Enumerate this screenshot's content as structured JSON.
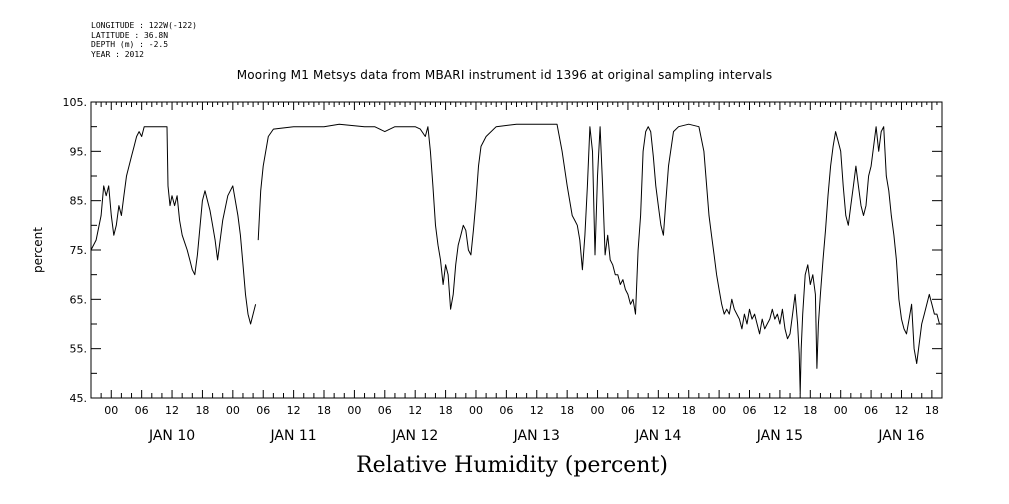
{
  "header": {
    "longitude": "LONGITUDE : 122W(-122)",
    "latitude": "LATITUDE : 36.8N",
    "depth": "DEPTH (m) : -2.5",
    "year": "YEAR : 2012"
  },
  "chart_data": {
    "type": "line",
    "title": "Mooring M1 Metsys data from MBARI instrument id 1396 at original sampling intervals",
    "xlabel": "Relative Humidity (percent)",
    "ylabel": "percent",
    "ylim": [
      45,
      105
    ],
    "yticks": [
      "45.",
      "55.",
      "65.",
      "75.",
      "85.",
      "95.",
      "105."
    ],
    "x_unit": "hours since JAN 10 00",
    "xlim": [
      -4,
      164
    ],
    "hour_ticks": [
      "00",
      "06",
      "12",
      "18",
      "00",
      "06",
      "12",
      "18",
      "00",
      "06",
      "12",
      "18",
      "00",
      "06",
      "12",
      "18",
      "00",
      "06",
      "12",
      "18",
      "00",
      "06",
      "12",
      "18",
      "00",
      "06",
      "12",
      "18"
    ],
    "day_labels": [
      "JAN 10",
      "JAN 11",
      "JAN 12",
      "JAN 13",
      "JAN 14",
      "JAN 15",
      "JAN 16"
    ],
    "grid": false,
    "series": [
      {
        "segments": [
          [
            [
              -4,
              75
            ],
            [
              -3,
              77
            ],
            [
              -2,
              82
            ],
            [
              -1.5,
              88
            ],
            [
              -1,
              86
            ],
            [
              -0.5,
              88
            ],
            [
              0,
              82
            ],
            [
              0.5,
              78
            ],
            [
              1,
              80
            ],
            [
              1.5,
              84
            ],
            [
              2,
              82
            ],
            [
              2.5,
              86
            ],
            [
              3,
              90
            ],
            [
              4,
              94
            ],
            [
              4.5,
              96
            ],
            [
              5,
              98
            ],
            [
              5.5,
              99
            ],
            [
              6,
              98
            ],
            [
              6.5,
              100
            ],
            [
              8,
              100
            ],
            [
              10,
              100
            ],
            [
              11,
              100
            ],
            [
              11.2,
              88
            ],
            [
              11.6,
              84
            ],
            [
              12,
              86
            ],
            [
              12.5,
              84
            ],
            [
              13,
              86
            ],
            [
              13.5,
              81
            ],
            [
              14,
              78
            ],
            [
              15,
              75
            ],
            [
              15.5,
              73
            ],
            [
              16,
              71
            ],
            [
              16.5,
              70
            ],
            [
              17,
              74
            ],
            [
              18,
              85
            ],
            [
              18.5,
              87
            ],
            [
              19,
              85
            ],
            [
              19.5,
              83
            ],
            [
              20,
              80
            ],
            [
              20.5,
              77
            ],
            [
              21,
              73
            ],
            [
              22,
              81
            ],
            [
              23,
              86
            ],
            [
              24,
              88
            ],
            [
              25,
              82
            ],
            [
              25.5,
              78
            ],
            [
              26,
              72
            ],
            [
              26.5,
              66
            ],
            [
              27,
              62
            ],
            [
              27.5,
              60
            ],
            [
              28,
              62
            ],
            [
              28.5,
              64
            ]
          ],
          [
            [
              29,
              77
            ],
            [
              29.5,
              87
            ],
            [
              30,
              92
            ],
            [
              31,
              98
            ],
            [
              32,
              99.5
            ],
            [
              36,
              100
            ],
            [
              42,
              100
            ],
            [
              45,
              100.5
            ],
            [
              50,
              100
            ],
            [
              52,
              100
            ],
            [
              54,
              99
            ],
            [
              56,
              100
            ],
            [
              60,
              100
            ],
            [
              61,
              99.5
            ],
            [
              62,
              98
            ],
            [
              62.5,
              100
            ],
            [
              63,
              95
            ],
            [
              63.5,
              88
            ],
            [
              64,
              80
            ],
            [
              64.5,
              76
            ],
            [
              65,
              73
            ],
            [
              65.5,
              68
            ],
            [
              66,
              72
            ],
            [
              66.5,
              70
            ],
            [
              67,
              63
            ],
            [
              67.5,
              66
            ],
            [
              68,
              72
            ],
            [
              68.5,
              76
            ],
            [
              69,
              78
            ],
            [
              69.5,
              80
            ],
            [
              70,
              79
            ],
            [
              70.5,
              75
            ],
            [
              71,
              74
            ],
            [
              71.5,
              79
            ],
            [
              72,
              85
            ],
            [
              72.5,
              92
            ],
            [
              73,
              96
            ],
            [
              74,
              98
            ],
            [
              76,
              100
            ],
            [
              80,
              100.5
            ],
            [
              86,
              100.5
            ],
            [
              88,
              100.5
            ],
            [
              89,
              95
            ],
            [
              90,
              88
            ],
            [
              91,
              82
            ],
            [
              91.5,
              81
            ],
            [
              92,
              80
            ],
            [
              92.5,
              77
            ],
            [
              93,
              71
            ],
            [
              93.5,
              78
            ],
            [
              94,
              88
            ],
            [
              94.5,
              100
            ],
            [
              95,
              95
            ],
            [
              95.5,
              74
            ],
            [
              96,
              90
            ],
            [
              96.5,
              100
            ],
            [
              97,
              88
            ],
            [
              97.5,
              74
            ],
            [
              98,
              78
            ],
            [
              98.5,
              73
            ],
            [
              99,
              72
            ],
            [
              99.5,
              70
            ],
            [
              100,
              70
            ],
            [
              100.5,
              68
            ],
            [
              101,
              69
            ],
            [
              101.5,
              67
            ],
            [
              102,
              66
            ],
            [
              102.5,
              64
            ],
            [
              103,
              65
            ],
            [
              103.5,
              62
            ],
            [
              104,
              75
            ],
            [
              104.5,
              82
            ],
            [
              105,
              95
            ],
            [
              105.5,
              99
            ],
            [
              106,
              100
            ],
            [
              106.5,
              99
            ],
            [
              107,
              94
            ],
            [
              107.5,
              88
            ],
            [
              108,
              84
            ],
            [
              108.5,
              80
            ],
            [
              109,
              78
            ],
            [
              109.5,
              85
            ],
            [
              110,
              92
            ],
            [
              111,
              99
            ],
            [
              112,
              100
            ],
            [
              114,
              100.5
            ],
            [
              116,
              100
            ],
            [
              117,
              95
            ],
            [
              118,
              82
            ],
            [
              118.5,
              78
            ],
            [
              119,
              74
            ],
            [
              119.5,
              70
            ],
            [
              120,
              67
            ],
            [
              120.5,
              64
            ],
            [
              121,
              62
            ],
            [
              121.5,
              63
            ],
            [
              122,
              62
            ],
            [
              122.5,
              65
            ],
            [
              123,
              63
            ],
            [
              123.5,
              62
            ],
            [
              124,
              61
            ],
            [
              124.5,
              59
            ],
            [
              125,
              62
            ],
            [
              125.5,
              60
            ],
            [
              126,
              63
            ],
            [
              126.5,
              61
            ],
            [
              127,
              62
            ],
            [
              127.5,
              60
            ],
            [
              128,
              58
            ],
            [
              128.5,
              61
            ],
            [
              129,
              59
            ],
            [
              129.5,
              60
            ],
            [
              130,
              61
            ],
            [
              130.5,
              63
            ],
            [
              131,
              61
            ],
            [
              131.5,
              62
            ],
            [
              132,
              60
            ],
            [
              132.5,
              63
            ],
            [
              133,
              59
            ],
            [
              133.5,
              57
            ],
            [
              134,
              58
            ],
            [
              134.5,
              62
            ],
            [
              135,
              66
            ],
            [
              135.5,
              60
            ],
            [
              135.8,
              54
            ],
            [
              136,
              46
            ],
            [
              136.2,
              55
            ],
            [
              136.5,
              62
            ],
            [
              137,
              70
            ],
            [
              137.5,
              72
            ],
            [
              138,
              68
            ],
            [
              138.5,
              70
            ],
            [
              139,
              66
            ],
            [
              139.3,
              51
            ],
            [
              139.6,
              60
            ],
            [
              140,
              66
            ],
            [
              140.5,
              73
            ],
            [
              141,
              79
            ],
            [
              141.5,
              86
            ],
            [
              142,
              92
            ],
            [
              142.5,
              96
            ],
            [
              143,
              99
            ],
            [
              143.5,
              97
            ],
            [
              144,
              95
            ],
            [
              144.5,
              88
            ],
            [
              145,
              82
            ],
            [
              145.5,
              80
            ],
            [
              146,
              84
            ],
            [
              146.5,
              88
            ],
            [
              147,
              92
            ],
            [
              147.5,
              88
            ],
            [
              148,
              84
            ],
            [
              148.5,
              82
            ],
            [
              149,
              84
            ],
            [
              149.5,
              90
            ],
            [
              150,
              92
            ],
            [
              150.5,
              96
            ],
            [
              151,
              100
            ],
            [
              151.5,
              95
            ],
            [
              152,
              99
            ],
            [
              152.5,
              100
            ],
            [
              153,
              90
            ],
            [
              153.5,
              87
            ],
            [
              154,
              82
            ],
            [
              154.5,
              78
            ],
            [
              155,
              73
            ],
            [
              155.5,
              65
            ],
            [
              156,
              61
            ],
            [
              156.5,
              59
            ],
            [
              157,
              58
            ],
            [
              157.5,
              61
            ],
            [
              158,
              64
            ],
            [
              158.5,
              55
            ],
            [
              159,
              52
            ],
            [
              159.5,
              56
            ],
            [
              160,
              60
            ],
            [
              160.5,
              62
            ],
            [
              161,
              64
            ],
            [
              161.5,
              66
            ],
            [
              162,
              64
            ],
            [
              162.5,
              62
            ],
            [
              163,
              62
            ],
            [
              163.5,
              60
            ]
          ]
        ]
      }
    ]
  }
}
